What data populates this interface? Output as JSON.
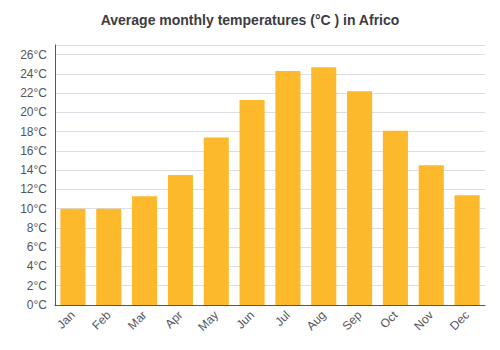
{
  "chart_data": {
    "type": "bar",
    "title": "Average monthly temperatures (°C ) in Africo",
    "categories": [
      "Jan",
      "Feb",
      "Mar",
      "Apr",
      "May",
      "Jun",
      "Jul",
      "Aug",
      "Sep",
      "Oct",
      "Nov",
      "Dec"
    ],
    "values": [
      10.0,
      10.0,
      11.3,
      13.5,
      17.4,
      21.3,
      24.3,
      24.7,
      22.2,
      18.1,
      14.5,
      11.4
    ],
    "color": "#FDB92C",
    "ylim": [
      0,
      27
    ],
    "yticks": [
      {
        "value": 0,
        "label": "0°C"
      },
      {
        "value": 2,
        "label": "2°C"
      },
      {
        "value": 4,
        "label": "4°C"
      },
      {
        "value": 6,
        "label": "6°C"
      },
      {
        "value": 8,
        "label": "8°C"
      },
      {
        "value": 10,
        "label": "10°C"
      },
      {
        "value": 12,
        "label": "12°C"
      },
      {
        "value": 14,
        "label": "14°C"
      },
      {
        "value": 16,
        "label": "16°C"
      },
      {
        "value": 18,
        "label": "18°C"
      },
      {
        "value": 20,
        "label": "20°C"
      },
      {
        "value": 22,
        "label": "22°C"
      },
      {
        "value": 24,
        "label": "24°C"
      },
      {
        "value": 26,
        "label": "26°C"
      }
    ],
    "grid": true
  }
}
